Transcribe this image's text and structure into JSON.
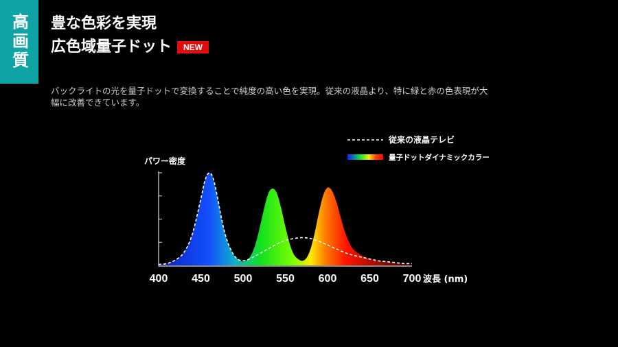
{
  "tag": "高画質",
  "title": {
    "line1": "豊な色彩を実現",
    "line2": "広色域量子ドット",
    "badge": "NEW"
  },
  "description": "バックライトの光を量子ドットで変換することで純度の高い色を実現。従来の液晶より、特に緑と赤の色表現が大幅に改善できています。",
  "chart_data": {
    "type": "line",
    "ylabel": "パワー密度",
    "xlabel": "波長 (nm)",
    "xlim": [
      400,
      700
    ],
    "ylim": [
      0,
      1
    ],
    "xticks": [
      400,
      450,
      500,
      550,
      600,
      650,
      700
    ],
    "series": [
      {
        "name": "従来の液晶テレビ",
        "style": "dashed-white",
        "x": [
          400,
          410,
          420,
          430,
          440,
          450,
          455,
          460,
          465,
          470,
          475,
          480,
          485,
          490,
          495,
          500,
          505,
          510,
          520,
          530,
          540,
          550,
          560,
          570,
          580,
          590,
          600,
          610,
          620,
          630,
          640,
          650,
          660,
          670,
          680,
          690,
          700
        ],
        "y": [
          0.01,
          0.02,
          0.06,
          0.14,
          0.34,
          0.72,
          0.92,
          1.0,
          0.93,
          0.72,
          0.48,
          0.3,
          0.18,
          0.1,
          0.06,
          0.05,
          0.06,
          0.08,
          0.13,
          0.18,
          0.23,
          0.27,
          0.29,
          0.3,
          0.29,
          0.26,
          0.22,
          0.18,
          0.14,
          0.11,
          0.09,
          0.07,
          0.05,
          0.04,
          0.03,
          0.02,
          0.02
        ]
      },
      {
        "name": "量子ドットダイナミックカラー",
        "style": "spectrum-fill",
        "x": [
          400,
          410,
          420,
          430,
          440,
          450,
          455,
          460,
          465,
          470,
          475,
          480,
          485,
          490,
          495,
          500,
          505,
          510,
          515,
          520,
          525,
          530,
          535,
          540,
          545,
          550,
          555,
          560,
          565,
          570,
          575,
          580,
          585,
          590,
          595,
          600,
          605,
          610,
          615,
          620,
          625,
          630,
          640,
          650,
          660,
          670,
          680,
          690,
          700
        ],
        "y": [
          0.01,
          0.02,
          0.06,
          0.14,
          0.34,
          0.72,
          0.92,
          1.0,
          0.93,
          0.72,
          0.48,
          0.3,
          0.18,
          0.1,
          0.06,
          0.04,
          0.06,
          0.12,
          0.24,
          0.42,
          0.62,
          0.78,
          0.83,
          0.78,
          0.62,
          0.42,
          0.24,
          0.12,
          0.07,
          0.05,
          0.08,
          0.18,
          0.36,
          0.58,
          0.76,
          0.84,
          0.81,
          0.7,
          0.54,
          0.38,
          0.26,
          0.18,
          0.11,
          0.07,
          0.05,
          0.04,
          0.03,
          0.02,
          0.02
        ]
      }
    ],
    "legend_position": "top-right"
  }
}
